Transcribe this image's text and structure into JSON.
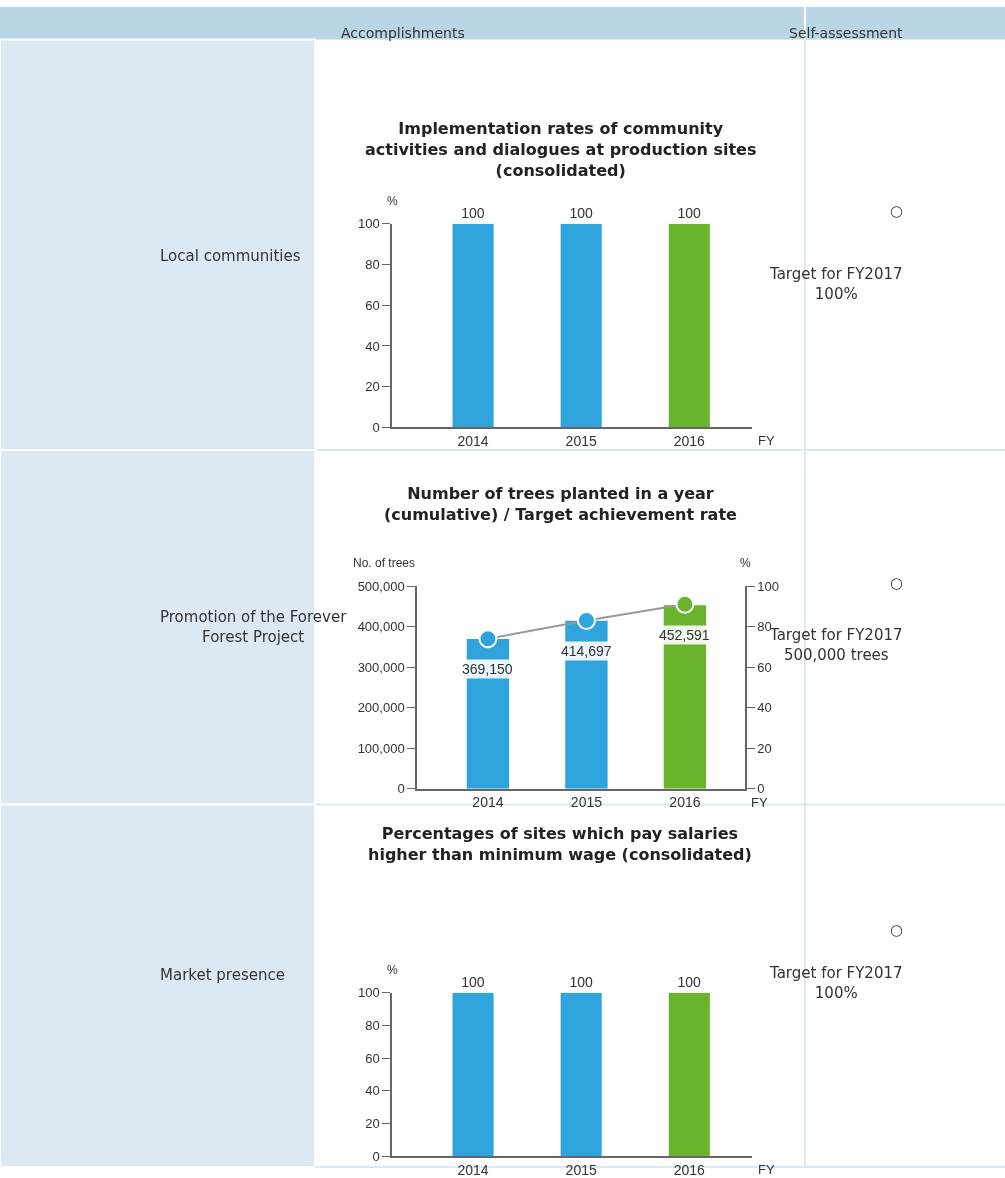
{
  "chart_data": [
    {
      "type": "other",
      "annotations": [
        "Accomplishments",
        "Self-assessment"
      ]
    },
    {
      "type": "bar",
      "title": "Implementation rates of community\nactivities and dialogues at production sites\n(consolidated)",
      "categories": [
        "2014",
        "2015",
        "2016"
      ],
      "values": [
        100,
        100,
        100
      ],
      "colors": [
        "#2ea3dc",
        "#2ea3dc",
        "#6ab42d"
      ],
      "ylabel": "%",
      "xlabel": "FY",
      "ylim": [
        0,
        100
      ],
      "yticks": [
        0,
        20,
        40,
        60,
        80,
        100
      ],
      "data_labels": true,
      "annotations": [
        "Local communities",
        "○",
        "Target for FY2017\n100%"
      ]
    },
    {
      "type": "bar",
      "title": "Number of trees planted in a year\n(cumulative) / Target achievement rate",
      "categories": [
        "2014",
        "2015",
        "2016"
      ],
      "ylabel": "No. of trees",
      "y2label": "%",
      "xlabel": "FY",
      "ylim": [
        0,
        500000
      ],
      "yticks": [
        0,
        {
          "value": 100000,
          "label": "100,000"
        },
        {
          "value": 200000,
          "label": "200,000"
        },
        {
          "value": 300000,
          "label": "300,000"
        },
        {
          "value": 400000,
          "label": "400,000"
        },
        {
          "value": 500000,
          "label": "500,000"
        }
      ],
      "y2lim": [
        0,
        100
      ],
      "y2ticks": [
        0,
        20,
        40,
        60,
        80,
        100
      ],
      "series": [
        {
          "type": "bar",
          "values": [
            369150,
            414697,
            452591
          ],
          "colors": [
            "#2ea3dc",
            "#2ea3dc",
            "#6ab42d"
          ],
          "value_labels": [
            "369,150",
            "414,697",
            "452,591"
          ]
        },
        {
          "type": "line",
          "axis": "y2",
          "values": [
            74,
            83,
            91
          ],
          "color": "#999999",
          "colors": [
            "#2ea3dc",
            "#2ea3dc",
            "#6ab42d"
          ],
          "marker": "circle"
        }
      ],
      "annotations": [
        "Promotion of the Forever\nForest Project",
        "○",
        "Target for FY2017\n500,000 trees"
      ]
    },
    {
      "type": "bar",
      "title": "Percentages of sites which pay salaries\nhigher than minimum wage (consolidated)",
      "categories": [
        "2014",
        "2015",
        "2016"
      ],
      "values": [
        100,
        100,
        100
      ],
      "colors": [
        "#2ea3dc",
        "#2ea3dc",
        "#6ab42d"
      ],
      "ylabel": "%",
      "xlabel": "FY",
      "ylim": [
        0,
        100
      ],
      "yticks": [
        0,
        20,
        40,
        60,
        80,
        100
      ],
      "data_labels": true,
      "annotations": [
        "Market presence",
        "○",
        "Target for FY2017\n100%"
      ]
    }
  ]
}
